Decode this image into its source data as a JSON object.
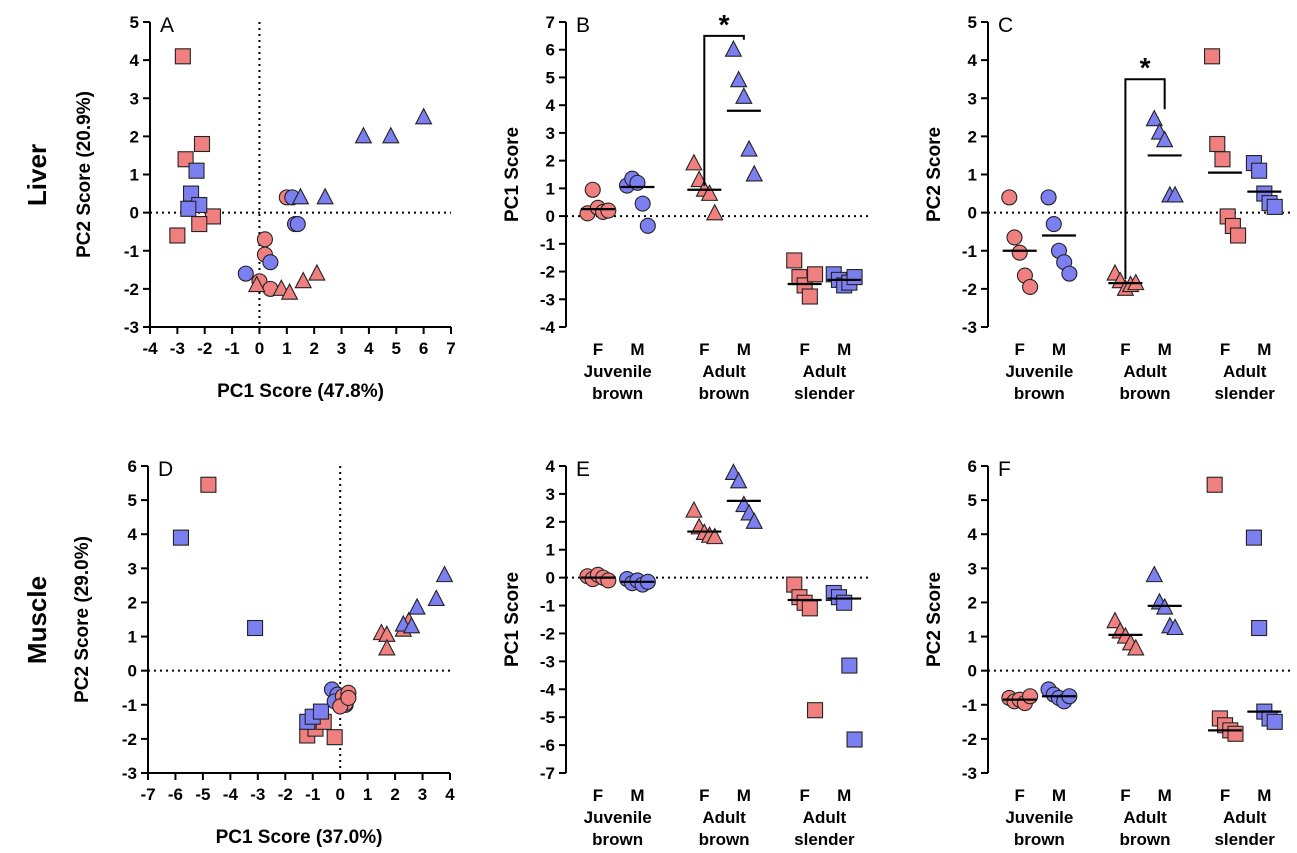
{
  "colors": {
    "female": "#f08080",
    "male": "#7b7ff0",
    "stroke": "#222222"
  },
  "row_labels": [
    "Liver",
    "Muscle"
  ],
  "group_axis": {
    "sex_labels": [
      "F",
      "M"
    ],
    "groups": [
      [
        "Juvenile",
        "brown"
      ],
      [
        "Adult",
        "brown"
      ],
      [
        "Adult",
        "slender"
      ]
    ]
  },
  "chart_data": [
    {
      "id": "A",
      "type": "scatter",
      "letter": "A",
      "xlabel": "PC1 Score (47.8%)",
      "ylabel": "PC2 Score (20.9%)",
      "xlim": [
        -4,
        7
      ],
      "ylim": [
        -3,
        5
      ],
      "xticks": [
        -4,
        -3,
        -2,
        -1,
        0,
        1,
        2,
        3,
        4,
        5,
        6,
        7
      ],
      "yticks": [
        -3,
        -2,
        -1,
        0,
        1,
        2,
        3,
        4,
        5
      ],
      "points": [
        {
          "x": -2.8,
          "y": 4.1,
          "sex": "F",
          "shape": "square"
        },
        {
          "x": -2.7,
          "y": 1.4,
          "sex": "F",
          "shape": "square"
        },
        {
          "x": -2.1,
          "y": 1.8,
          "sex": "F",
          "shape": "square"
        },
        {
          "x": -1.7,
          "y": -0.1,
          "sex": "F",
          "shape": "square"
        },
        {
          "x": -2.2,
          "y": -0.3,
          "sex": "F",
          "shape": "square"
        },
        {
          "x": -3.0,
          "y": -0.6,
          "sex": "F",
          "shape": "square"
        },
        {
          "x": -2.3,
          "y": 1.1,
          "sex": "M",
          "shape": "square"
        },
        {
          "x": -2.5,
          "y": 0.5,
          "sex": "M",
          "shape": "square"
        },
        {
          "x": -2.2,
          "y": 0.2,
          "sex": "M",
          "shape": "square"
        },
        {
          "x": -2.6,
          "y": 0.1,
          "sex": "M",
          "shape": "square"
        },
        {
          "x": 0.2,
          "y": -0.7,
          "sex": "F",
          "shape": "circle"
        },
        {
          "x": 0.2,
          "y": -1.1,
          "sex": "F",
          "shape": "circle"
        },
        {
          "x": 0.0,
          "y": -1.8,
          "sex": "F",
          "shape": "circle"
        },
        {
          "x": 0.4,
          "y": -2.0,
          "sex": "F",
          "shape": "circle"
        },
        {
          "x": 1.0,
          "y": 0.4,
          "sex": "F",
          "shape": "circle"
        },
        {
          "x": -0.5,
          "y": -1.6,
          "sex": "M",
          "shape": "circle"
        },
        {
          "x": 0.4,
          "y": -1.3,
          "sex": "M",
          "shape": "circle"
        },
        {
          "x": 1.3,
          "y": -0.3,
          "sex": "M",
          "shape": "circle"
        },
        {
          "x": 1.2,
          "y": 0.4,
          "sex": "M",
          "shape": "circle"
        },
        {
          "x": 1.4,
          "y": -0.3,
          "sex": "M",
          "shape": "circle"
        },
        {
          "x": -0.1,
          "y": -1.9,
          "sex": "F",
          "shape": "triangle"
        },
        {
          "x": 0.8,
          "y": -2.0,
          "sex": "F",
          "shape": "triangle"
        },
        {
          "x": 1.1,
          "y": -2.1,
          "sex": "F",
          "shape": "triangle"
        },
        {
          "x": 1.6,
          "y": -1.8,
          "sex": "F",
          "shape": "triangle"
        },
        {
          "x": 2.1,
          "y": -1.6,
          "sex": "F",
          "shape": "triangle"
        },
        {
          "x": 1.5,
          "y": 0.4,
          "sex": "M",
          "shape": "triangle"
        },
        {
          "x": 2.4,
          "y": 0.4,
          "sex": "M",
          "shape": "triangle"
        },
        {
          "x": 3.8,
          "y": 2.0,
          "sex": "M",
          "shape": "triangle"
        },
        {
          "x": 4.8,
          "y": 2.0,
          "sex": "M",
          "shape": "triangle"
        },
        {
          "x": 6.0,
          "y": 2.5,
          "sex": "M",
          "shape": "triangle"
        }
      ]
    },
    {
      "id": "B",
      "type": "scatter",
      "letter": "B",
      "ylabel": "PC1 Score",
      "ylim": [
        -4,
        7
      ],
      "yticks": [
        -4,
        -3,
        -2,
        -1,
        0,
        1,
        2,
        3,
        4,
        5,
        6,
        7
      ],
      "groups": [
        {
          "group": 0,
          "sex": "F",
          "shape": "circle",
          "mean": 0.25,
          "values": [
            0.1,
            0.95,
            0.3,
            0.15,
            0.2
          ]
        },
        {
          "group": 0,
          "sex": "M",
          "shape": "circle",
          "mean": 1.05,
          "values": [
            1.1,
            1.35,
            1.2,
            0.45,
            -0.35
          ]
        },
        {
          "group": 1,
          "sex": "F",
          "shape": "triangle",
          "mean": 0.95,
          "values": [
            1.9,
            1.3,
            0.95,
            0.8,
            0.1
          ]
        },
        {
          "group": 1,
          "sex": "M",
          "shape": "triangle",
          "mean": 3.8,
          "values": [
            6.0,
            4.9,
            4.3,
            2.4,
            1.5
          ]
        },
        {
          "group": 2,
          "sex": "F",
          "shape": "square",
          "mean": -2.45,
          "values": [
            -1.6,
            -2.2,
            -2.5,
            -2.9,
            -2.1
          ]
        },
        {
          "group": 2,
          "sex": "M",
          "shape": "square",
          "mean": -2.3,
          "values": [
            -2.1,
            -2.3,
            -2.5,
            -2.4,
            -2.2
          ]
        }
      ],
      "significance": {
        "group": 1,
        "y": 6.5,
        "label": "*"
      }
    },
    {
      "id": "C",
      "type": "scatter",
      "letter": "C",
      "ylabel": "PC2 Score",
      "ylim": [
        -3,
        5
      ],
      "yticks": [
        -3,
        -2,
        -1,
        0,
        1,
        2,
        3,
        4,
        5
      ],
      "groups": [
        {
          "group": 0,
          "sex": "F",
          "shape": "circle",
          "mean": -1.0,
          "values": [
            0.4,
            -0.65,
            -1.05,
            -1.65,
            -1.95
          ]
        },
        {
          "group": 0,
          "sex": "M",
          "shape": "circle",
          "mean": -0.6,
          "values": [
            0.4,
            -0.3,
            -1.0,
            -1.3,
            -1.6
          ]
        },
        {
          "group": 1,
          "sex": "F",
          "shape": "triangle",
          "mean": -1.85,
          "values": [
            -1.6,
            -1.8,
            -2.0,
            -1.9,
            -1.85
          ]
        },
        {
          "group": 1,
          "sex": "M",
          "shape": "triangle",
          "mean": 1.5,
          "values": [
            2.45,
            2.1,
            1.9,
            0.45,
            0.45
          ]
        },
        {
          "group": 2,
          "sex": "F",
          "shape": "square",
          "mean": 1.05,
          "values": [
            4.1,
            1.8,
            1.4,
            -0.1,
            -0.35,
            -0.6
          ]
        },
        {
          "group": 2,
          "sex": "M",
          "shape": "square",
          "mean": 0.55,
          "values": [
            1.3,
            1.1,
            0.5,
            0.25,
            0.15
          ]
        }
      ],
      "significance": {
        "group": 1,
        "y": 3.5,
        "label": "*"
      }
    },
    {
      "id": "D",
      "type": "scatter",
      "letter": "D",
      "xlabel": "PC1 Score (37.0%)",
      "ylabel": "PC2 Score (29.0%)",
      "xlim": [
        -7,
        4
      ],
      "ylim": [
        -3,
        6
      ],
      "xticks": [
        -7,
        -6,
        -5,
        -4,
        -3,
        -2,
        -1,
        0,
        1,
        2,
        3,
        4
      ],
      "yticks": [
        -3,
        -2,
        -1,
        0,
        1,
        2,
        3,
        4,
        5,
        6
      ],
      "points": [
        {
          "x": -4.8,
          "y": 5.45,
          "sex": "F",
          "shape": "square"
        },
        {
          "x": -1.2,
          "y": -1.9,
          "sex": "F",
          "shape": "square"
        },
        {
          "x": -0.9,
          "y": -1.7,
          "sex": "F",
          "shape": "square"
        },
        {
          "x": -0.2,
          "y": -1.95,
          "sex": "F",
          "shape": "square"
        },
        {
          "x": -0.6,
          "y": -1.5,
          "sex": "F",
          "shape": "square"
        },
        {
          "x": -5.8,
          "y": 3.9,
          "sex": "M",
          "shape": "square"
        },
        {
          "x": -3.1,
          "y": 1.25,
          "sex": "M",
          "shape": "square"
        },
        {
          "x": -1.2,
          "y": -1.5,
          "sex": "M",
          "shape": "square"
        },
        {
          "x": -1.0,
          "y": -1.35,
          "sex": "M",
          "shape": "square"
        },
        {
          "x": -0.7,
          "y": -1.2,
          "sex": "M",
          "shape": "square"
        },
        {
          "x": -0.3,
          "y": -0.55,
          "sex": "M",
          "shape": "circle"
        },
        {
          "x": -0.1,
          "y": -0.7,
          "sex": "M",
          "shape": "circle"
        },
        {
          "x": 0.1,
          "y": -0.85,
          "sex": "M",
          "shape": "circle"
        },
        {
          "x": 0.2,
          "y": -1.0,
          "sex": "M",
          "shape": "circle"
        },
        {
          "x": -0.2,
          "y": -0.9,
          "sex": "M",
          "shape": "circle"
        },
        {
          "x": 0.1,
          "y": -0.75,
          "sex": "F",
          "shape": "circle"
        },
        {
          "x": 0.3,
          "y": -0.65,
          "sex": "F",
          "shape": "circle"
        },
        {
          "x": 0.2,
          "y": -0.95,
          "sex": "F",
          "shape": "circle"
        },
        {
          "x": 0.0,
          "y": -1.05,
          "sex": "F",
          "shape": "circle"
        },
        {
          "x": 0.3,
          "y": -0.8,
          "sex": "F",
          "shape": "circle"
        },
        {
          "x": 1.5,
          "y": 1.1,
          "sex": "F",
          "shape": "triangle"
        },
        {
          "x": 1.7,
          "y": 1.05,
          "sex": "F",
          "shape": "triangle"
        },
        {
          "x": 1.7,
          "y": 0.65,
          "sex": "F",
          "shape": "triangle"
        },
        {
          "x": 2.3,
          "y": 1.2,
          "sex": "F",
          "shape": "triangle"
        },
        {
          "x": 2.5,
          "y": 1.45,
          "sex": "F",
          "shape": "triangle"
        },
        {
          "x": 2.3,
          "y": 1.35,
          "sex": "M",
          "shape": "triangle"
        },
        {
          "x": 2.6,
          "y": 1.3,
          "sex": "M",
          "shape": "triangle"
        },
        {
          "x": 2.8,
          "y": 1.85,
          "sex": "M",
          "shape": "triangle"
        },
        {
          "x": 3.5,
          "y": 2.1,
          "sex": "M",
          "shape": "triangle"
        },
        {
          "x": 3.8,
          "y": 2.8,
          "sex": "M",
          "shape": "triangle"
        }
      ]
    },
    {
      "id": "E",
      "type": "scatter",
      "letter": "E",
      "ylabel": "PC1 Score",
      "ylim": [
        -7,
        4
      ],
      "yticks": [
        -7,
        -6,
        -5,
        -4,
        -3,
        -2,
        -1,
        0,
        1,
        2,
        3,
        4
      ],
      "groups": [
        {
          "group": 0,
          "sex": "F",
          "shape": "circle",
          "mean": 0.0,
          "values": [
            0.05,
            -0.05,
            0.1,
            0.0,
            -0.1
          ]
        },
        {
          "group": 0,
          "sex": "M",
          "shape": "circle",
          "mean": -0.15,
          "values": [
            -0.05,
            -0.2,
            -0.1,
            -0.25,
            -0.15
          ]
        },
        {
          "group": 1,
          "sex": "F",
          "shape": "triangle",
          "mean": 1.65,
          "values": [
            2.4,
            1.8,
            1.6,
            1.5,
            1.45
          ]
        },
        {
          "group": 1,
          "sex": "M",
          "shape": "triangle",
          "mean": 2.75,
          "values": [
            3.75,
            3.45,
            2.6,
            2.3,
            2.0
          ]
        },
        {
          "group": 2,
          "sex": "F",
          "shape": "square",
          "mean": -0.8,
          "values": [
            -0.25,
            -0.7,
            -0.9,
            -1.1,
            -4.75
          ]
        },
        {
          "group": 2,
          "sex": "M",
          "shape": "square",
          "mean": -0.75,
          "values": [
            -0.55,
            -0.7,
            -0.9,
            -3.15,
            -5.8
          ]
        }
      ]
    },
    {
      "id": "F",
      "type": "scatter",
      "letter": "F",
      "ylabel": "PC2 Score",
      "ylim": [
        -3,
        6
      ],
      "yticks": [
        -3,
        -2,
        -1,
        0,
        1,
        2,
        3,
        4,
        5,
        6
      ],
      "groups": [
        {
          "group": 0,
          "sex": "F",
          "shape": "circle",
          "mean": -0.85,
          "values": [
            -0.8,
            -0.9,
            -0.85,
            -0.95,
            -0.75
          ]
        },
        {
          "group": 0,
          "sex": "M",
          "shape": "circle",
          "mean": -0.75,
          "values": [
            -0.55,
            -0.7,
            -0.8,
            -0.9,
            -0.75
          ]
        },
        {
          "group": 1,
          "sex": "F",
          "shape": "triangle",
          "mean": 1.05,
          "values": [
            1.45,
            1.15,
            1.0,
            0.8,
            0.65
          ]
        },
        {
          "group": 1,
          "sex": "M",
          "shape": "triangle",
          "mean": 1.9,
          "values": [
            2.8,
            2.0,
            1.85,
            1.3,
            1.25
          ]
        },
        {
          "group": 2,
          "sex": "F",
          "shape": "square",
          "mean": -1.75,
          "values": [
            5.45,
            -1.4,
            -1.6,
            -1.75,
            -1.85
          ]
        },
        {
          "group": 2,
          "sex": "M",
          "shape": "square",
          "mean": -1.2,
          "values": [
            3.9,
            1.25,
            -1.2,
            -1.4,
            -1.5
          ]
        }
      ]
    }
  ]
}
